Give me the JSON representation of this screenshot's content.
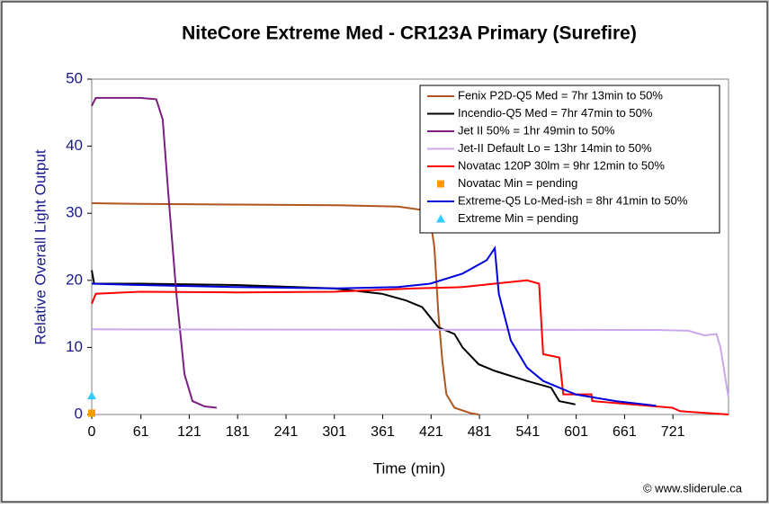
{
  "chart_data": {
    "type": "line",
    "title": "NiteCore Extreme Med - CR123A Primary (Surefire)",
    "x_label": "Time (min)",
    "y_label": "Relative Overall Light Output",
    "footnote": "© www.sliderule.ca",
    "xlim": [
      0,
      790
    ],
    "xticks": [
      0,
      61,
      121,
      181,
      241,
      301,
      361,
      421,
      481,
      541,
      601,
      661,
      721
    ],
    "ylim": [
      0,
      50
    ],
    "yticks": [
      0,
      10,
      20,
      30,
      40,
      50
    ],
    "legend": "upper right",
    "series": [
      {
        "name": "Fenix P2D-Q5 Med = 7hr 13min to 50%",
        "color": "#b0561e",
        "x": [
          0,
          60,
          180,
          300,
          380,
          410,
          420,
          425,
          430,
          435,
          440,
          450,
          470,
          480
        ],
        "values": [
          31.5,
          31.4,
          31.3,
          31.2,
          31,
          30.5,
          29,
          25,
          15,
          8,
          3,
          1,
          0.2,
          0
        ]
      },
      {
        "name": "Incendio-Q5 Med = 7hr 47min to 50%",
        "color": "#000000",
        "x": [
          0,
          3,
          60,
          180,
          300,
          360,
          390,
          410,
          430,
          450,
          460,
          480,
          500,
          540,
          570,
          580,
          600
        ],
        "values": [
          21.5,
          19.5,
          19.5,
          19.3,
          18.8,
          18,
          17,
          16,
          13,
          12,
          10,
          7.5,
          6.5,
          5,
          4,
          2,
          1.5
        ]
      },
      {
        "name": "Jet II 50% = 1hr 49min to 50%",
        "color": "#7b1f80",
        "x": [
          0,
          5,
          60,
          80,
          88,
          95,
          105,
          115,
          125,
          140,
          155
        ],
        "values": [
          46,
          47.2,
          47.2,
          47,
          44,
          33,
          18,
          6,
          2,
          1.2,
          1
        ]
      },
      {
        "name": "Jet-II Default Lo = 13hr 14min to 50%",
        "color": "#c9a8ec",
        "x": [
          0,
          700,
          740,
          760,
          775,
          780,
          790
        ],
        "values": [
          12.7,
          12.6,
          12.5,
          11.8,
          12,
          10,
          2.5
        ]
      },
      {
        "name": "Novatac 120P 30lm = 9hr 12min to 50%",
        "color": "#ff0000",
        "x": [
          0,
          5,
          60,
          180,
          300,
          400,
          460,
          500,
          540,
          555,
          560,
          580,
          585,
          620,
          621,
          700,
          720,
          730,
          790
        ],
        "values": [
          16.5,
          18,
          18.3,
          18.2,
          18.3,
          18.8,
          19,
          19.5,
          20,
          19.5,
          9,
          8.5,
          3,
          3,
          2,
          1.2,
          1,
          0.5,
          0
        ]
      },
      {
        "name": "Novatac Min = pending",
        "color": "#ff9900",
        "marker": "square",
        "x": [
          0
        ],
        "values": [
          0.2
        ]
      },
      {
        "name": "Extreme-Q5 Lo-Med-ish = 8hr 41min to 50%",
        "color": "#0000dd",
        "x": [
          0,
          60,
          180,
          300,
          380,
          420,
          460,
          490,
          500,
          505,
          520,
          540,
          560,
          600,
          650,
          700
        ],
        "values": [
          19.5,
          19.3,
          19,
          18.8,
          19,
          19.5,
          21,
          23,
          24.8,
          18,
          11,
          7,
          5,
          3,
          2,
          1.3
        ]
      },
      {
        "name": "Extreme Min = pending",
        "color": "#33ccff",
        "marker": "triangle",
        "x": [
          0
        ],
        "values": [
          2.8
        ]
      }
    ]
  }
}
